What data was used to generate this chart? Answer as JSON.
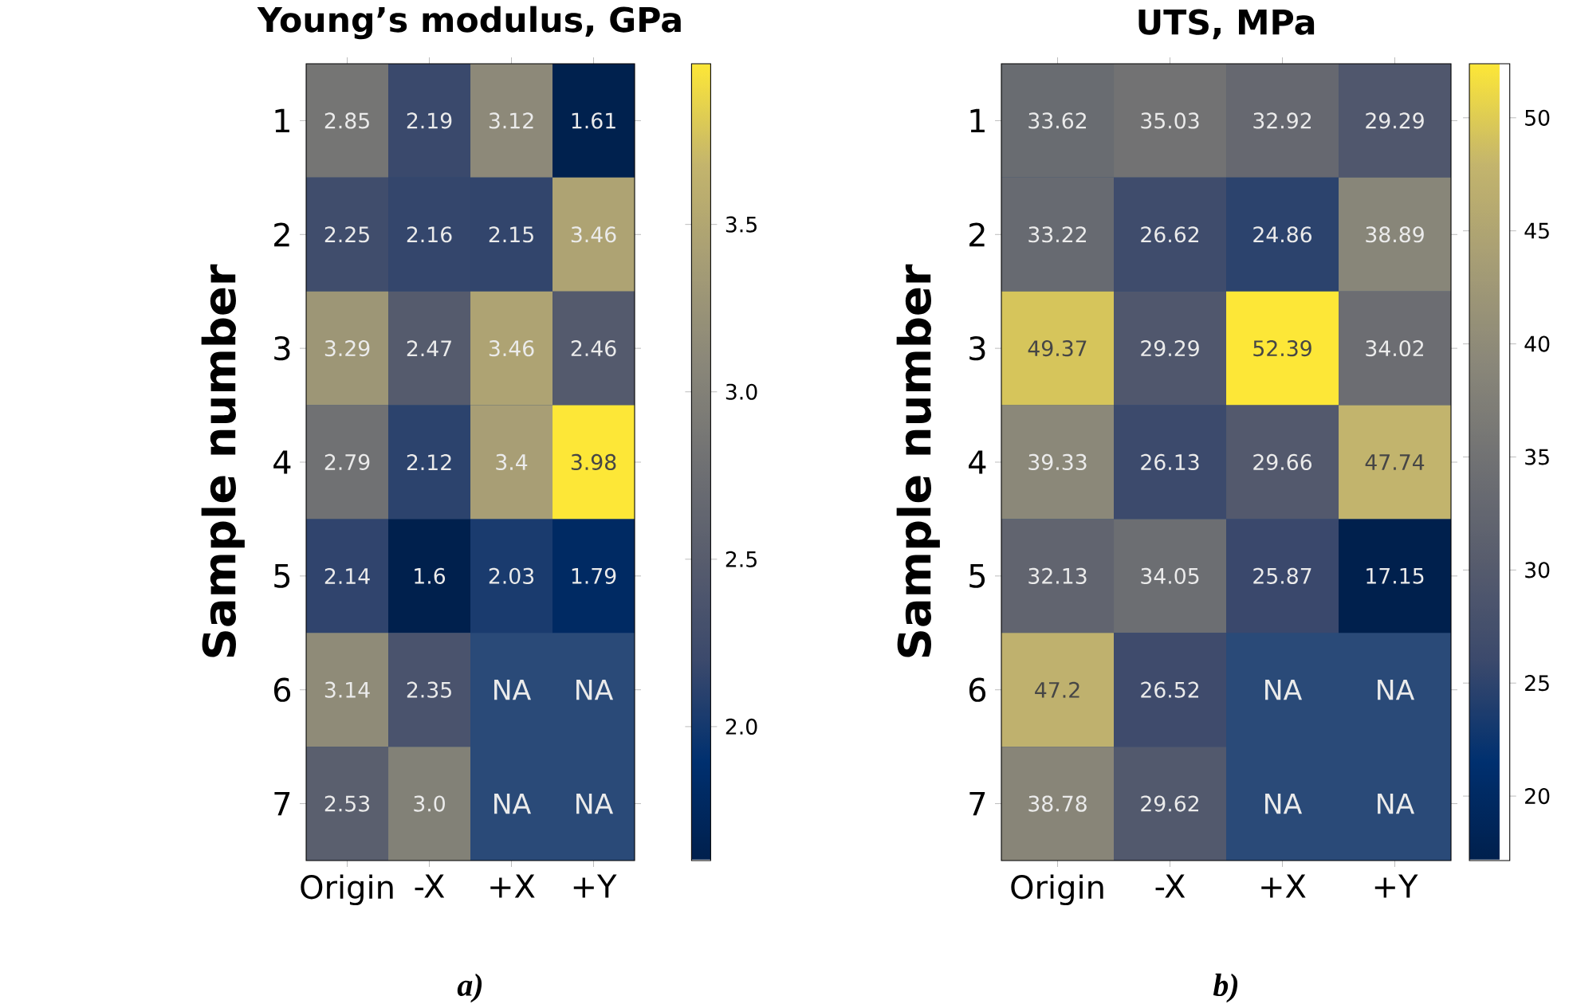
{
  "chart_data": [
    {
      "type": "heatmap",
      "title": "Young’s modulus, GPa",
      "ylabel": "Sample number",
      "categories": [
        "Origin",
        "-X",
        "+X",
        "+Y"
      ],
      "y_categories": [
        "1",
        "2",
        "3",
        "4",
        "5",
        "6",
        "7"
      ],
      "cells": [
        [
          2.85,
          2.19,
          3.12,
          1.61
        ],
        [
          2.25,
          2.16,
          2.15,
          3.46
        ],
        [
          3.29,
          2.47,
          3.46,
          2.46
        ],
        [
          2.79,
          2.12,
          3.4,
          3.98
        ],
        [
          2.14,
          1.6,
          2.03,
          1.79
        ],
        [
          3.14,
          2.35,
          null,
          null
        ],
        [
          2.53,
          3.0,
          null,
          null
        ]
      ],
      "cell_labels": [
        [
          "2.85",
          "2.19",
          "3.12",
          "1.61"
        ],
        [
          "2.25",
          "2.16",
          "2.15",
          "3.46"
        ],
        [
          "3.29",
          "2.47",
          "3.46",
          "2.46"
        ],
        [
          "2.79",
          "2.12",
          "3.4",
          "3.98"
        ],
        [
          "2.14",
          "1.6",
          "2.03",
          "1.79"
        ],
        [
          "3.14",
          "2.35",
          "NA",
          "NA"
        ],
        [
          "2.53",
          "3.0",
          "NA",
          "NA"
        ]
      ],
      "clim": [
        1.6,
        3.98
      ],
      "cticks": [
        {
          "value": 2.0,
          "label": "2.0"
        },
        {
          "value": 2.5,
          "label": "2.5"
        },
        {
          "value": 3.0,
          "label": "3.0"
        },
        {
          "value": 3.5,
          "label": "3.5"
        }
      ],
      "annotations": [
        "a)"
      ]
    },
    {
      "type": "heatmap",
      "title": "UTS, MPa",
      "ylabel": "Sample number",
      "categories": [
        "Origin",
        "-X",
        "+X",
        "+Y"
      ],
      "y_categories": [
        "1",
        "2",
        "3",
        "4",
        "5",
        "6",
        "7"
      ],
      "cells": [
        [
          33.62,
          35.03,
          32.92,
          29.29
        ],
        [
          33.22,
          26.62,
          24.86,
          38.89
        ],
        [
          49.37,
          29.29,
          52.39,
          34.02
        ],
        [
          39.33,
          26.13,
          29.66,
          47.74
        ],
        [
          32.13,
          34.05,
          25.87,
          17.15
        ],
        [
          47.2,
          26.52,
          null,
          null
        ],
        [
          38.78,
          29.62,
          null,
          null
        ]
      ],
      "cell_labels": [
        [
          "33.62",
          "35.03",
          "32.92",
          "29.29"
        ],
        [
          "33.22",
          "26.62",
          "24.86",
          "38.89"
        ],
        [
          "49.37",
          "29.29",
          "52.39",
          "34.02"
        ],
        [
          "39.33",
          "26.13",
          "29.66",
          "47.74"
        ],
        [
          "32.13",
          "34.05",
          "25.87",
          "17.15"
        ],
        [
          "47.2",
          "26.52",
          "NA",
          "NA"
        ],
        [
          "38.78",
          "29.62",
          "NA",
          "NA"
        ]
      ],
      "clim": [
        17.15,
        52.39
      ],
      "cticks": [
        20,
        25,
        30,
        35,
        40,
        45,
        50
      ],
      "annotations": [
        "b)"
      ]
    }
  ]
}
